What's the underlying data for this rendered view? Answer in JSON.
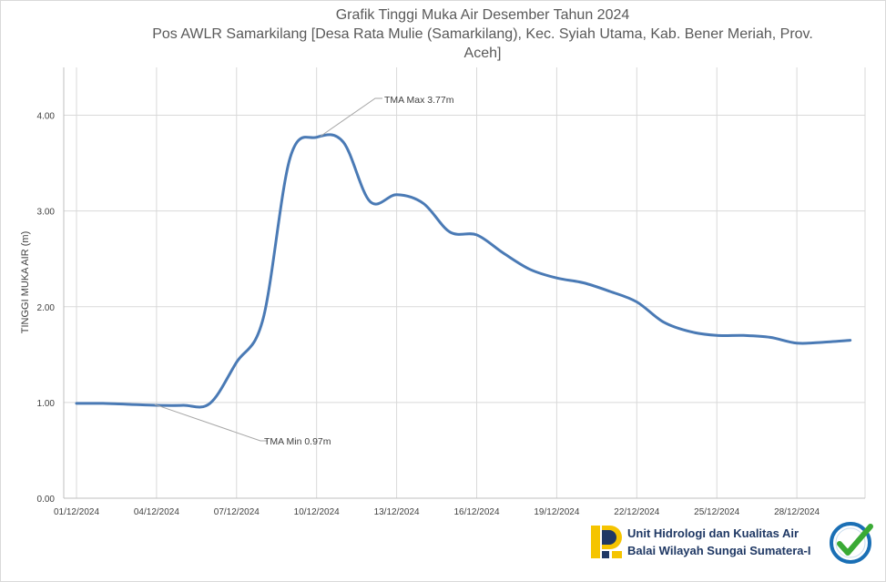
{
  "title": {
    "line1": "Grafik Tinggi Muka Air Desember Tahun 2024",
    "line2": "Pos AWLR Samarkilang [Desa Rata Mulie (Samarkilang), Kec. Syiah Utama, Kab. Bener Meriah, Prov.",
    "line3": "Aceh]"
  },
  "organization": {
    "line1": "Unit Hidrologi dan Kualitas Air",
    "line2": "Balai Wilayah Sungai Sumatera-I"
  },
  "colors": {
    "series": "#4a7ab5",
    "grid": "#d9d9d9",
    "logo_yellow": "#f5c400",
    "logo_blue": "#1f3864",
    "badge_blue": "#1a6fb5",
    "badge_green": "#3aaa35"
  },
  "chart_data": {
    "type": "line",
    "title": "Grafik Tinggi Muka Air Desember Tahun 2024",
    "subtitle": "Pos AWLR Samarkilang [Desa Rata Mulie (Samarkilang), Kec. Syiah Utama, Kab. Bener Meriah, Prov. Aceh]",
    "xlabel": "",
    "ylabel": "TINGGI MUKA AIR (m)",
    "xlim": [
      "01/12/2024",
      "31/12/2024"
    ],
    "ylim": [
      0,
      4.5
    ],
    "y_ticks": [
      0,
      1,
      2,
      3,
      4
    ],
    "y_tick_labels": [
      "0.00",
      "1.00",
      "2.00",
      "3.00",
      "4.00"
    ],
    "x_tick_labels": [
      "01/12/2024",
      "04/12/2024",
      "07/12/2024",
      "10/12/2024",
      "13/12/2024",
      "16/12/2024",
      "19/12/2024",
      "22/12/2024",
      "25/12/2024",
      "28/12/2024"
    ],
    "grid": true,
    "legend": "none",
    "x": [
      "01/12/2024",
      "02/12/2024",
      "03/12/2024",
      "04/12/2024",
      "05/12/2024",
      "06/12/2024",
      "07/12/2024",
      "08/12/2024",
      "09/12/2024",
      "10/12/2024",
      "11/12/2024",
      "12/12/2024",
      "13/12/2024",
      "14/12/2024",
      "15/12/2024",
      "16/12/2024",
      "17/12/2024",
      "18/12/2024",
      "19/12/2024",
      "20/12/2024",
      "21/12/2024",
      "22/12/2024",
      "23/12/2024",
      "24/12/2024",
      "25/12/2024",
      "26/12/2024",
      "27/12/2024",
      "28/12/2024",
      "29/12/2024",
      "30/12/2024"
    ],
    "series": [
      {
        "values": [
          0.99,
          0.99,
          0.98,
          0.97,
          0.97,
          0.99,
          1.42,
          1.88,
          3.55,
          3.77,
          3.72,
          3.1,
          3.17,
          3.08,
          2.78,
          2.75,
          2.56,
          2.39,
          2.3,
          2.25,
          2.16,
          2.05,
          1.84,
          1.74,
          1.7,
          1.7,
          1.68,
          1.62,
          1.63,
          1.65
        ]
      }
    ],
    "annotations": [
      {
        "text": "TMA Max 3.77m",
        "x": "10/12/2024",
        "y": 3.77
      },
      {
        "text": "TMA Min 0.97m",
        "x": "04/12/2024",
        "y": 0.97
      }
    ]
  }
}
